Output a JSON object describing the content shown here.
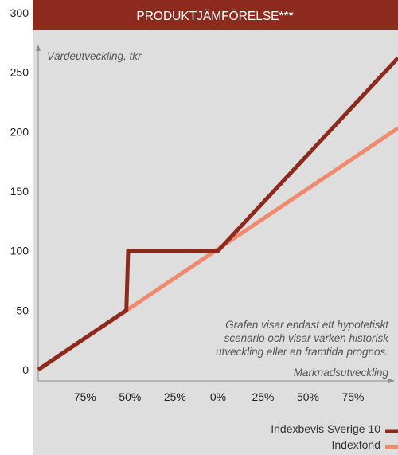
{
  "chart_data": {
    "type": "line",
    "title": "PRODUKTJÄMFÖRELSE***",
    "ylabel": "Värdeutveckling, tkr",
    "xlabel": "Marknadsutveckling",
    "ylim": [
      0,
      300
    ],
    "yticks": [
      0,
      50,
      100,
      150,
      200,
      250,
      300
    ],
    "xlim": [
      -100,
      100
    ],
    "xticks": [
      {
        "value": -75,
        "label": "-75%"
      },
      {
        "value": -50,
        "label": "-50%"
      },
      {
        "value": -25,
        "label": "-25%"
      },
      {
        "value": 0,
        "label": "0%"
      },
      {
        "value": 25,
        "label": "25%"
      },
      {
        "value": 50,
        "label": "50%"
      },
      {
        "value": 75,
        "label": "75%"
      }
    ],
    "note": [
      "Grafen visar endast ett hypotetiskt",
      "scenario och visar varken historisk",
      "utveckling eller en framtida prognos."
    ],
    "series": [
      {
        "name": "Indexbevis Sverige 10",
        "color": "#8b2a1d",
        "points": [
          [
            -100,
            0
          ],
          [
            -51,
            50
          ],
          [
            -50,
            100
          ],
          [
            0,
            100
          ],
          [
            100,
            262
          ]
        ]
      },
      {
        "name": "Indexfond",
        "color": "#f08a6e",
        "points": [
          [
            -100,
            0
          ],
          [
            100,
            203
          ]
        ]
      }
    ],
    "grid": false,
    "legend": "bottom-right"
  },
  "colors": {
    "title_band": "#8b2a1d",
    "plot_background": "#dedede",
    "axis": "#8c8c8c"
  }
}
